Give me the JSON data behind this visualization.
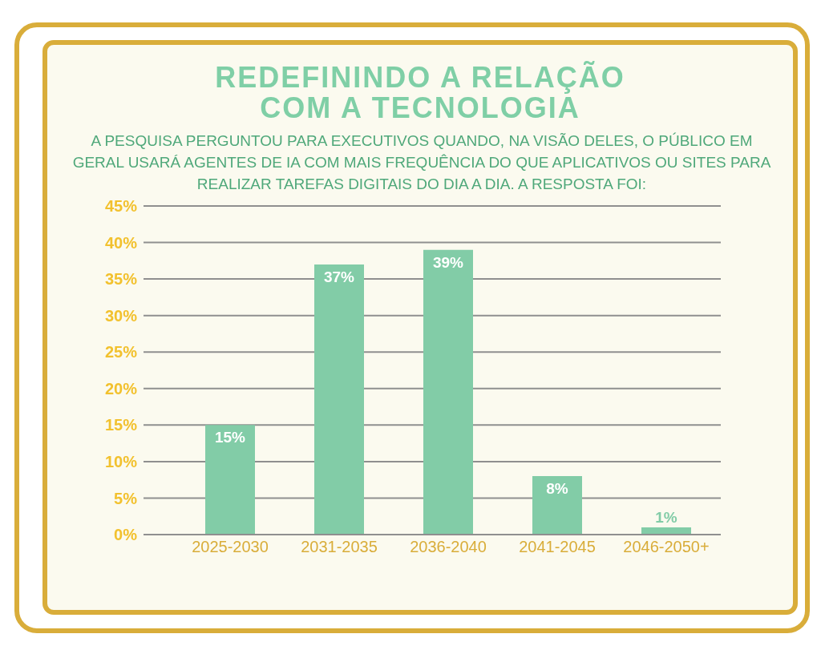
{
  "chart_data": {
    "type": "bar",
    "title": "REDEFININDO A RELAÇÃO COM A TECNOLOGIA",
    "subtitle": "A PESQUISA PERGUNTOU PARA EXECUTIVOS QUANDO, NA VISÃO DELES, O PÚBLICO EM GERAL USARÁ AGENTES DE IA COM MAIS FREQUÊNCIA DO QUE APLICATIVOS OU SITES PARA REALIZAR TAREFAS DIGITAIS DO DIA A DIA. A RESPOSTA FOI:",
    "categories": [
      "2025-2030",
      "2031-2035",
      "2036-2040",
      "2041-2045",
      "2046-2050+"
    ],
    "values": [
      15,
      37,
      39,
      8,
      1
    ],
    "value_labels": [
      "15%",
      "37%",
      "39%",
      "8%",
      "1%"
    ],
    "color": "#82cca7",
    "ylim": [
      0,
      45
    ],
    "yticks": [
      {
        "value": 0,
        "label": "0%"
      },
      {
        "value": 5,
        "label": "5%"
      },
      {
        "value": 10,
        "label": "10%"
      },
      {
        "value": 15,
        "label": "15%"
      },
      {
        "value": 20,
        "label": "20%"
      },
      {
        "value": 25,
        "label": "25%"
      },
      {
        "value": 30,
        "label": "30%"
      },
      {
        "value": 35,
        "label": "35%"
      },
      {
        "value": 40,
        "label": "40%"
      },
      {
        "value": 45,
        "label": "45%"
      }
    ],
    "grid": "y",
    "legend": false
  }
}
